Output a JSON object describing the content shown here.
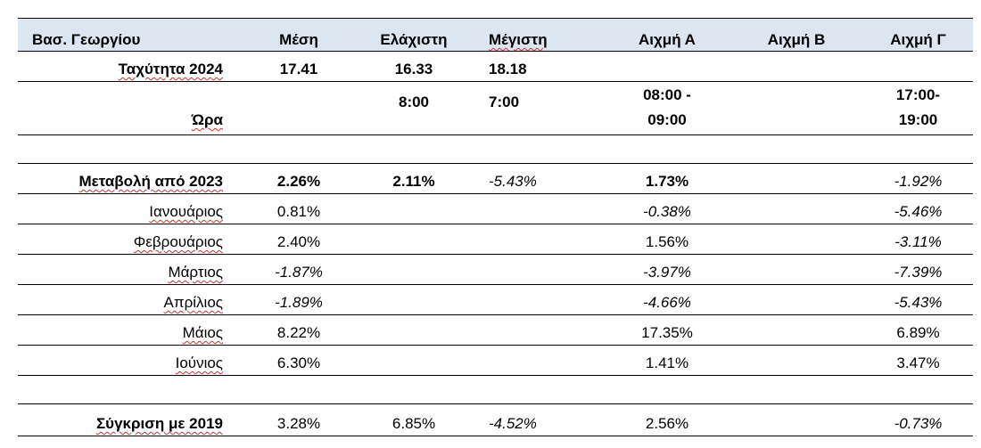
{
  "header": {
    "location": "Βασ. Γεωργίου",
    "mean": "Μέση",
    "min": "Ελάχιστη",
    "max": "Μέγιστη",
    "peak_a": "Αιχμή Α",
    "peak_b": "Αιχμή Β",
    "peak_g": "Αιχμή Γ"
  },
  "speed_row": {
    "label": "Ταχύτητα 2024",
    "mean": "17.41",
    "min": "16.33",
    "max": "18.18"
  },
  "time_row": {
    "label": "Ώρα",
    "min": "8:00",
    "max": "7:00",
    "peak_a_line1": "08:00 -",
    "peak_a_line2": "09:00",
    "peak_g_line1": "17:00-",
    "peak_g_line2": "19:00"
  },
  "change_row": {
    "label": "Μεταβολή από 2023",
    "mean": "2.26%",
    "min": "2.11%",
    "max": "-5.43%",
    "peak_a": "1.73%",
    "peak_g": "-1.92%"
  },
  "months": [
    {
      "label": "Ιανουάριος",
      "mean": "0.81%",
      "peak_a": "-0.38%",
      "peak_g": "-5.46%"
    },
    {
      "label": "Φεβρουάριος",
      "mean": "2.40%",
      "peak_a": "1.56%",
      "peak_g": "-3.11%"
    },
    {
      "label": "Μάρτιος",
      "mean": "-1.87%",
      "peak_a": "-3.97%",
      "peak_g": "-7.39%"
    },
    {
      "label": "Απρίλιος",
      "mean": "-1.89%",
      "peak_a": "-4.66%",
      "peak_g": "-5.43%"
    },
    {
      "label": "Μάιος",
      "mean": "8.22%",
      "peak_a": "17.35%",
      "peak_g": "6.89%"
    },
    {
      "label": "Ιούνιος",
      "mean": "6.30%",
      "peak_a": "1.41%",
      "peak_g": "3.47%"
    }
  ],
  "compare_row": {
    "label": "Σύγκριση με 2019",
    "mean": "3.28%",
    "min": "6.85%",
    "max": "-4.52%",
    "peak_a": "2.56%",
    "peak_g": "-0.73%"
  },
  "colors": {
    "header_bg": "#dce6f1",
    "border": "#000000",
    "spellcheck": "#cc3333"
  }
}
